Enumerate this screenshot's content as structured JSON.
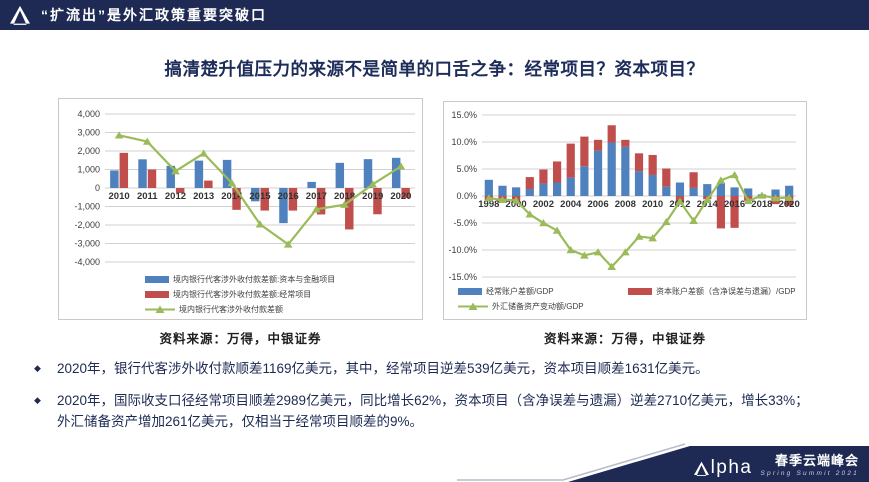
{
  "header": {
    "title": "“扩流出”是外汇政策重要突破口",
    "logo_icon": "alpha-triangle-icon"
  },
  "slide_title": "搞清楚升值压力的来源不是简单的口舌之争：经常项目？资本项目？",
  "colors": {
    "navy": "#1f2a54",
    "title_navy": "#1e2c5a",
    "bar_blue": "#4e81bd",
    "bar_red": "#bf4e4d",
    "line_green": "#9bbb59"
  },
  "chart_data": [
    {
      "id": "bank-fx-settlement",
      "type": "bar+line",
      "bar_mode": "grouped",
      "categories": [
        "2010",
        "2011",
        "2012",
        "2013",
        "2014",
        "2015",
        "2016",
        "2017",
        "2018",
        "2019",
        "2020"
      ],
      "series": [
        {
          "name": "境内银行代客涉外收付款差额:资本与金融项目",
          "type": "bar",
          "color": "#4e81bd",
          "values": [
            950,
            1550,
            1200,
            1480,
            1520,
            -720,
            -1900,
            330,
            1360,
            1560,
            1631
          ]
        },
        {
          "name": "境内银行代客涉外收付款差额:经常项目",
          "type": "bar",
          "color": "#bf4e4d",
          "values": [
            1900,
            1000,
            -270,
            400,
            -1180,
            -1220,
            -1220,
            -1430,
            -2240,
            -1420,
            -539
          ]
        },
        {
          "name": "境内银行代客涉外收付款差额",
          "type": "line",
          "color": "#9bbb59",
          "values": [
            2850,
            2510,
            910,
            1870,
            270,
            -1960,
            -3050,
            -1150,
            -900,
            200,
            1169
          ]
        }
      ],
      "ylim": [
        -4000,
        4000
      ],
      "ystep": 1000,
      "ytick_labels": [
        "4,000",
        "3,000",
        "2,000",
        "1,000",
        "0",
        "-1,000",
        "-2,000",
        "-3,000",
        "-4,000"
      ],
      "xtick_every": 1,
      "grid": true,
      "legend_position": "bottom",
      "source": "资料来源：万得，中银证券"
    },
    {
      "id": "bop-to-gdp",
      "type": "bar+line",
      "bar_mode": "stacked",
      "categories": [
        "1998",
        "1999",
        "2000",
        "2001",
        "2002",
        "2003",
        "2004",
        "2005",
        "2006",
        "2007",
        "2008",
        "2009",
        "2010",
        "2011",
        "2012",
        "2013",
        "2014",
        "2015",
        "2016",
        "2017",
        "2018",
        "2019",
        "2020"
      ],
      "series": [
        {
          "name": "经常账户差额/GDP",
          "type": "bar",
          "color": "#4e81bd",
          "values": [
            3.0,
            1.9,
            1.6,
            1.3,
            2.3,
            2.5,
            3.4,
            5.5,
            8.4,
            9.9,
            9.1,
            4.6,
            3.9,
            1.7,
            2.5,
            1.5,
            2.2,
            2.3,
            1.6,
            1.4,
            0.3,
            1.2,
            1.9
          ]
        },
        {
          "name": "资本账户差额（含净误差与遗漏）/GDP",
          "type": "bar",
          "color": "#bf4e4d",
          "values": [
            -0.9,
            -0.9,
            -0.9,
            2.2,
            2.6,
            3.9,
            6.3,
            5.5,
            2.0,
            3.2,
            1.3,
            3.3,
            3.7,
            3.4,
            -1.2,
            2.9,
            -0.6,
            -6.0,
            -5.9,
            -0.9,
            -0.4,
            -1.5,
            -1.8
          ]
        },
        {
          "name": "外汇储备资产变动额/GDP",
          "type": "line",
          "color": "#9bbb59",
          "values": [
            -0.4,
            -0.7,
            -0.8,
            -3.4,
            -5.0,
            -6.4,
            -10.0,
            -11.0,
            -10.4,
            -13.1,
            -10.4,
            -7.5,
            -7.8,
            -4.8,
            -1.0,
            -4.6,
            -0.7,
            2.9,
            3.9,
            -0.9,
            0.1,
            -0.4,
            -0.3
          ]
        }
      ],
      "ylim": [
        -15,
        15
      ],
      "ystep": 5,
      "ytick_labels": [
        "15.0%",
        "10.0%",
        "5.0%",
        "0.0%",
        "-5.0%",
        "-10.0%",
        "-15.0%"
      ],
      "xtick_every": 2,
      "grid": true,
      "legend_position": "bottom",
      "source": "资料来源：万得，中银证券"
    }
  ],
  "bullets": [
    {
      "lines": [
        "2020年，银行代客涉外收付款顺差1169亿美元，其中，经常项目逆差539亿美元，资本项目顺差1631亿美元。"
      ]
    },
    {
      "lines": [
        "2020年，国际收支口径经常项目顺差2989亿美元，同比增长62%，资本项目（含净误差与遗漏）逆差2710亿美元，增长33%；",
        "外汇储备资产增加261亿美元，仅相当于经常项目顺差的9%。"
      ]
    }
  ],
  "bullet_marker": "◆",
  "footer": {
    "logo_rest": "lpha",
    "summit_cn": "春季云端峰会",
    "summit_en": "Spring Summit 2021"
  }
}
